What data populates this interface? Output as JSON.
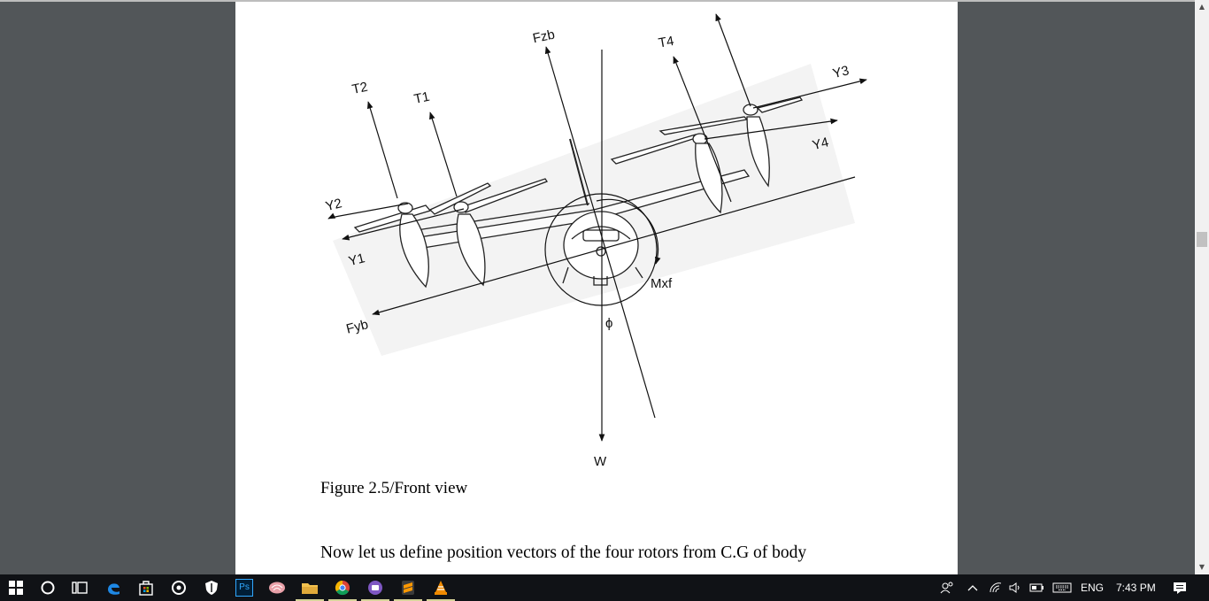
{
  "document": {
    "figure_labels": {
      "fzb": "Fzb",
      "t4": "T4",
      "t2": "T2",
      "t1": "T1",
      "y3": "Y3",
      "y4": "Y4",
      "y2": "Y2",
      "y1": "Y1",
      "mxf": "Mxf",
      "fyb": "Fyb",
      "phi": "ϕ",
      "w": "W"
    },
    "caption": "Figure 2.5/Front view",
    "body_text": "Now let us define position vectors of the four rotors from C.G of body"
  },
  "scrollbar": {
    "up_arrow": "▲",
    "down_arrow": "▼"
  },
  "taskbar": {
    "photoshop_label": "Ps",
    "tray": {
      "language": "ENG",
      "time": "7:43 PM"
    }
  },
  "colors": {
    "viewer_bg": "#525659",
    "taskbar_bg": "#101216",
    "edge_blue": "#1e88e5",
    "folder_yellow": "#f2c14e",
    "ps_blue": "#31a8ff",
    "vlc_orange": "#f08a00",
    "sublime_orange": "#ff9800"
  },
  "icons": [
    "windows-start-icon",
    "cortana-icon",
    "task-view-icon",
    "edge-icon",
    "store-icon",
    "media-icon",
    "security-icon",
    "photoshop-icon",
    "brain-app-icon",
    "file-explorer-icon",
    "chrome-icon",
    "purple-app-icon",
    "sublime-text-icon",
    "vlc-icon",
    "people-icon",
    "tray-chevron-icon",
    "network-icon",
    "volume-icon",
    "battery-icon",
    "keyboard-icon",
    "action-center-icon"
  ]
}
